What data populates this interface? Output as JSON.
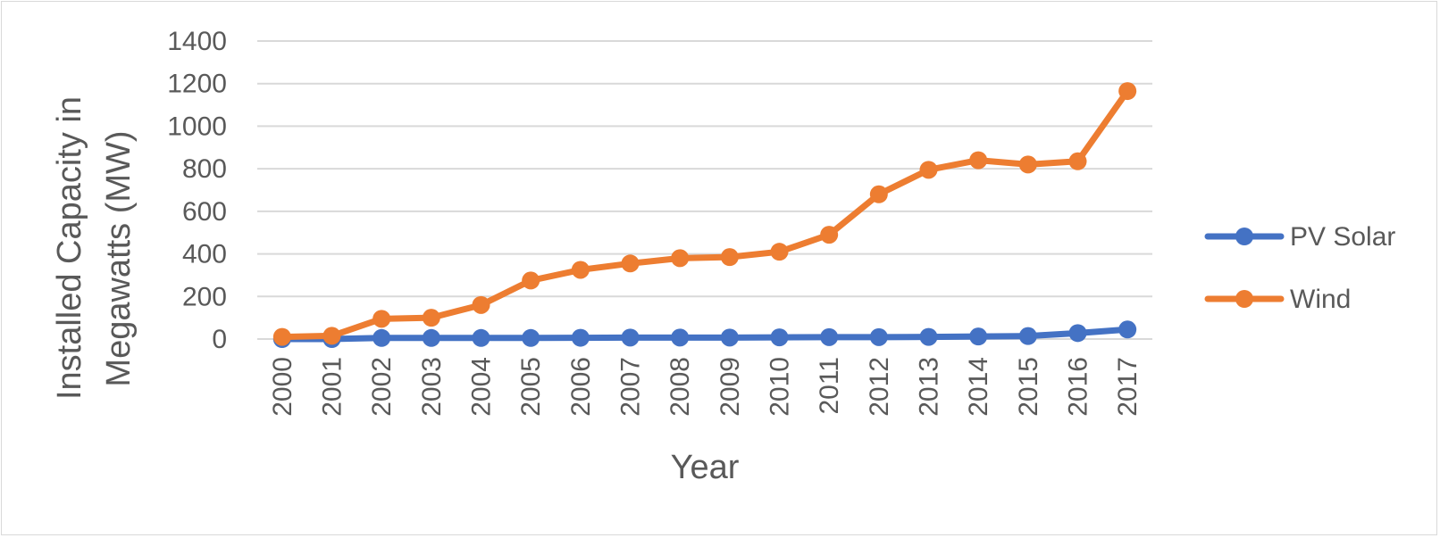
{
  "chart_data": {
    "type": "line",
    "title": "",
    "xlabel": "Year",
    "ylabel_lines": [
      "Installed Capacity in",
      "Megawatts (MW)"
    ],
    "ylim": [
      0,
      1400
    ],
    "yticks": [
      0,
      200,
      400,
      600,
      800,
      1000,
      1200,
      1400
    ],
    "categories": [
      "2000",
      "2001",
      "2002",
      "2003",
      "2004",
      "2005",
      "2006",
      "2007",
      "2008",
      "2009",
      "2010",
      "2011",
      "2012",
      "2013",
      "2014",
      "2015",
      "2016",
      "2017"
    ],
    "grid": true,
    "legend_position": "right",
    "series": [
      {
        "name": "PV Solar",
        "color": "#4472c4",
        "values": [
          0,
          0,
          5,
          5,
          5,
          5,
          6,
          7,
          7,
          7,
          8,
          9,
          9,
          10,
          12,
          14,
          28,
          45
        ]
      },
      {
        "name": "Wind",
        "color": "#ed7d31",
        "values": [
          10,
          15,
          95,
          100,
          160,
          275,
          325,
          355,
          380,
          385,
          410,
          490,
          680,
          795,
          840,
          820,
          835,
          1165
        ]
      }
    ]
  }
}
